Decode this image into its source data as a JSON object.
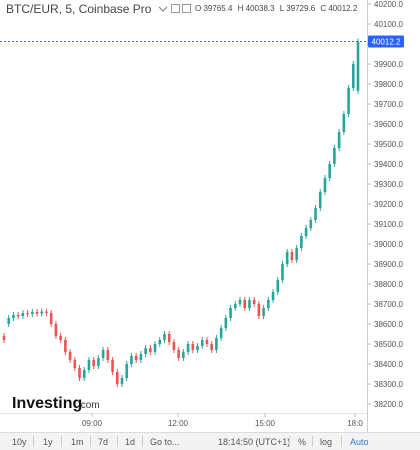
{
  "header": {
    "title": "BTC/EUR, 5, Coinbase Pro",
    "ohlc": {
      "O": "39765.4",
      "H": "40038.3",
      "L": "39729.6",
      "C": "40012.2"
    }
  },
  "icons": {
    "dropdown": "chevron-down-icon",
    "box1": "square-icon",
    "box2": "square-icon"
  },
  "colors": {
    "up": "#26a69a",
    "down": "#ef5350",
    "price_line": "#2962ff",
    "price_label_bg": "#2962ff"
  },
  "last_price_label": "40012.2",
  "logo": {
    "brand": "Investing",
    "suffix": ".com"
  },
  "toolbar": {
    "ranges": [
      "10y",
      "1y",
      "1m",
      "7d",
      "1d"
    ],
    "goto": "Go to...",
    "time": "18:14:50 (UTC+1)",
    "pct": "%",
    "log": "log",
    "auto": "Auto"
  },
  "chart_data": {
    "type": "candlestick",
    "y_axis": {
      "min": 38200,
      "max": 40200,
      "ticks": [
        40200,
        40100,
        40000,
        39900,
        39800,
        39700,
        39600,
        39500,
        39400,
        39300,
        39200,
        39100,
        39000,
        38900,
        38800,
        38700,
        38600,
        38500,
        38400,
        38300,
        38200
      ]
    },
    "x_axis": {
      "ticks": [
        "09:00",
        "12:00",
        "15:00",
        "18:0"
      ]
    },
    "grid": false,
    "last_price": 40012.2,
    "series": [
      {
        "o": 38540,
        "c": 38520
      },
      {
        "o": 38600,
        "c": 38630
      },
      {
        "o": 38630,
        "c": 38645
      },
      {
        "o": 38645,
        "c": 38640
      },
      {
        "o": 38640,
        "c": 38655
      },
      {
        "o": 38655,
        "c": 38650
      },
      {
        "o": 38650,
        "c": 38660
      },
      {
        "o": 38660,
        "c": 38652
      },
      {
        "o": 38652,
        "c": 38662
      },
      {
        "o": 38662,
        "c": 38655
      },
      {
        "o": 38655,
        "c": 38600
      },
      {
        "o": 38600,
        "c": 38540
      },
      {
        "o": 38540,
        "c": 38520
      },
      {
        "o": 38520,
        "c": 38460
      },
      {
        "o": 38460,
        "c": 38420
      },
      {
        "o": 38420,
        "c": 38380
      },
      {
        "o": 38380,
        "c": 38330
      },
      {
        "o": 38330,
        "c": 38370
      },
      {
        "o": 38370,
        "c": 38420
      },
      {
        "o": 38420,
        "c": 38390
      },
      {
        "o": 38390,
        "c": 38430
      },
      {
        "o": 38430,
        "c": 38470
      },
      {
        "o": 38470,
        "c": 38420
      },
      {
        "o": 38420,
        "c": 38360
      },
      {
        "o": 38360,
        "c": 38300
      },
      {
        "o": 38300,
        "c": 38330
      },
      {
        "o": 38330,
        "c": 38400
      },
      {
        "o": 38400,
        "c": 38440
      },
      {
        "o": 38440,
        "c": 38420
      },
      {
        "o": 38420,
        "c": 38450
      },
      {
        "o": 38450,
        "c": 38480
      },
      {
        "o": 38480,
        "c": 38460
      },
      {
        "o": 38460,
        "c": 38500
      },
      {
        "o": 38500,
        "c": 38520
      },
      {
        "o": 38520,
        "c": 38550
      },
      {
        "o": 38550,
        "c": 38510
      },
      {
        "o": 38510,
        "c": 38470
      },
      {
        "o": 38470,
        "c": 38430
      },
      {
        "o": 38430,
        "c": 38460
      },
      {
        "o": 38460,
        "c": 38500
      },
      {
        "o": 38500,
        "c": 38470
      },
      {
        "o": 38470,
        "c": 38490
      },
      {
        "o": 38490,
        "c": 38520
      },
      {
        "o": 38520,
        "c": 38500
      },
      {
        "o": 38500,
        "c": 38470
      },
      {
        "o": 38470,
        "c": 38530
      },
      {
        "o": 38530,
        "c": 38580
      },
      {
        "o": 38580,
        "c": 38630
      },
      {
        "o": 38630,
        "c": 38680
      },
      {
        "o": 38680,
        "c": 38700
      },
      {
        "o": 38700,
        "c": 38720
      },
      {
        "o": 38720,
        "c": 38680
      },
      {
        "o": 38680,
        "c": 38720
      },
      {
        "o": 38720,
        "c": 38700
      },
      {
        "o": 38700,
        "c": 38640
      },
      {
        "o": 38640,
        "c": 38680
      },
      {
        "o": 38680,
        "c": 38720
      },
      {
        "o": 38720,
        "c": 38760
      },
      {
        "o": 38760,
        "c": 38820
      },
      {
        "o": 38820,
        "c": 38900
      },
      {
        "o": 38900,
        "c": 38960
      },
      {
        "o": 38960,
        "c": 38920
      },
      {
        "o": 38920,
        "c": 38980
      },
      {
        "o": 38980,
        "c": 39040
      },
      {
        "o": 39040,
        "c": 39080
      },
      {
        "o": 39080,
        "c": 39120
      },
      {
        "o": 39120,
        "c": 39180
      },
      {
        "o": 39180,
        "c": 39260
      },
      {
        "o": 39260,
        "c": 39330
      },
      {
        "o": 39330,
        "c": 39400
      },
      {
        "o": 39400,
        "c": 39480
      },
      {
        "o": 39480,
        "c": 39560
      },
      {
        "o": 39560,
        "c": 39650
      },
      {
        "o": 39650,
        "c": 39780
      },
      {
        "o": 39780,
        "c": 39900
      },
      {
        "o": 39765.4,
        "c": 40012.2
      }
    ]
  }
}
